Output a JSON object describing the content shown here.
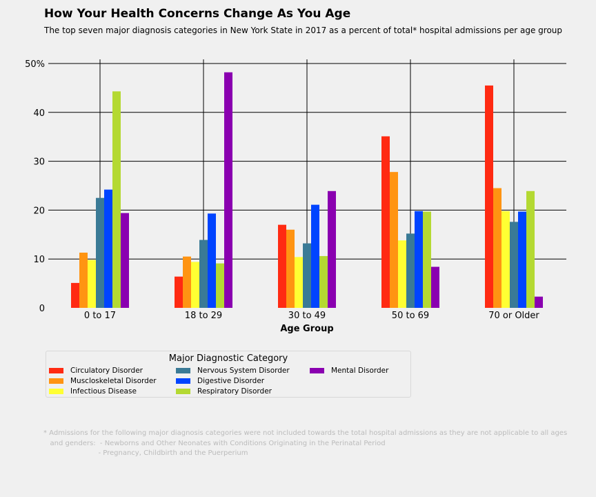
{
  "chart_data": {
    "type": "bar",
    "title": "How Your Health Concerns Change As You Age",
    "subtitle": "The top seven major diagnosis categories in New York State in 2017 as a percent of total* hospital admissions per age group",
    "xlabel": "Age Group",
    "ylabel": "",
    "ylim": [
      0,
      50
    ],
    "yticks": [
      "0",
      "10",
      "20",
      "30",
      "40",
      "50%"
    ],
    "grid": true,
    "legend_placement": "bottom-left, below chart",
    "legend_title": "Major Diagnostic Category",
    "categories": [
      "0 to 17",
      "18 to 29",
      "30 to 49",
      "50 to 69",
      "70 or Older"
    ],
    "series": [
      {
        "name": "Circulatory Disorder",
        "color": "#ff2a12",
        "values": [
          5.1,
          6.4,
          17.0,
          35.1,
          45.5
        ]
      },
      {
        "name": "Muscloskeletal Disorder",
        "color": "#ff9412",
        "values": [
          11.3,
          10.5,
          16.0,
          27.8,
          24.5
        ]
      },
      {
        "name": "Infectious Disease",
        "color": "#ffff33",
        "values": [
          9.8,
          9.4,
          10.4,
          13.8,
          19.8
        ]
      },
      {
        "name": "Nervous System Disorder",
        "color": "#3a7a96",
        "values": [
          22.5,
          13.9,
          13.2,
          15.2,
          17.6
        ]
      },
      {
        "name": "Digestive Disorder",
        "color": "#0044ff",
        "values": [
          24.2,
          19.3,
          21.1,
          19.8,
          19.7
        ]
      },
      {
        "name": "Respiratory Disorder",
        "color": "#b4d932",
        "values": [
          44.3,
          9.1,
          10.6,
          19.7,
          23.9
        ]
      },
      {
        "name": "Mental Disorder",
        "color": "#8a00b0",
        "values": [
          19.4,
          48.2,
          23.9,
          8.4,
          2.3
        ]
      }
    ]
  },
  "footnote": {
    "line1": "* Admissions for the following major diagnosis categories were not included towards the total hospital admissions as they are not applicable to all ages",
    "line2": "   and genders:  - Newborns and Other Neonates with Conditions Originating in the Perinatal Period",
    "line3": "                         - Pregnancy, Childbirth and the Puerperium"
  }
}
